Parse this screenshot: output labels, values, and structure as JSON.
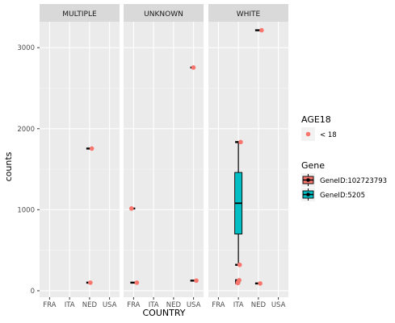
{
  "chart_data": {
    "type": "boxplot-with-points",
    "xlabel": "COUNTRY",
    "ylabel": "counts",
    "ylim": [
      -80,
      3320
    ],
    "y_ticks": [
      0,
      1000,
      2000,
      3000
    ],
    "x_categories": [
      "FRA",
      "ITA",
      "NED",
      "USA"
    ],
    "panels": [
      {
        "label": "MULTIPLE"
      },
      {
        "label": "UNKNOWN"
      },
      {
        "label": "WHITE"
      }
    ],
    "points": [
      {
        "panel": 0,
        "x": "NED",
        "y": 1755
      },
      {
        "panel": 0,
        "x": "NED",
        "y": 100
      },
      {
        "panel": 1,
        "x": "FRA",
        "y": 1015
      },
      {
        "panel": 1,
        "x": "FRA",
        "y": 100
      },
      {
        "panel": 1,
        "x": "USA",
        "y": 2755
      },
      {
        "panel": 1,
        "x": "USA",
        "y": 125
      },
      {
        "panel": 2,
        "x": "ITA",
        "y": 1835
      },
      {
        "panel": 2,
        "x": "ITA",
        "y": 320
      },
      {
        "panel": 2,
        "x": "ITA",
        "y": 130
      },
      {
        "panel": 2,
        "x": "ITA",
        "y": 110
      },
      {
        "panel": 2,
        "x": "ITA",
        "y": 95
      },
      {
        "panel": 2,
        "x": "NED",
        "y": 3215
      },
      {
        "panel": 2,
        "x": "NED",
        "y": 90
      }
    ],
    "boxes": [
      {
        "panel": 2,
        "x": "ITA",
        "gene": "GeneID:5205",
        "min": 320,
        "q1": 700,
        "median": 1080,
        "q3": 1460,
        "max": 1835
      }
    ],
    "point_color": "#F8766D",
    "gene_colors": [
      "#F8766D",
      "#00BFC4"
    ],
    "legend_placement": "right",
    "legend_age": {
      "title": "AGE18",
      "entries": [
        "< 18"
      ]
    },
    "legend_gene": {
      "title": "Gene",
      "entries": [
        "GeneID:102723793",
        "GeneID:5205"
      ]
    }
  }
}
